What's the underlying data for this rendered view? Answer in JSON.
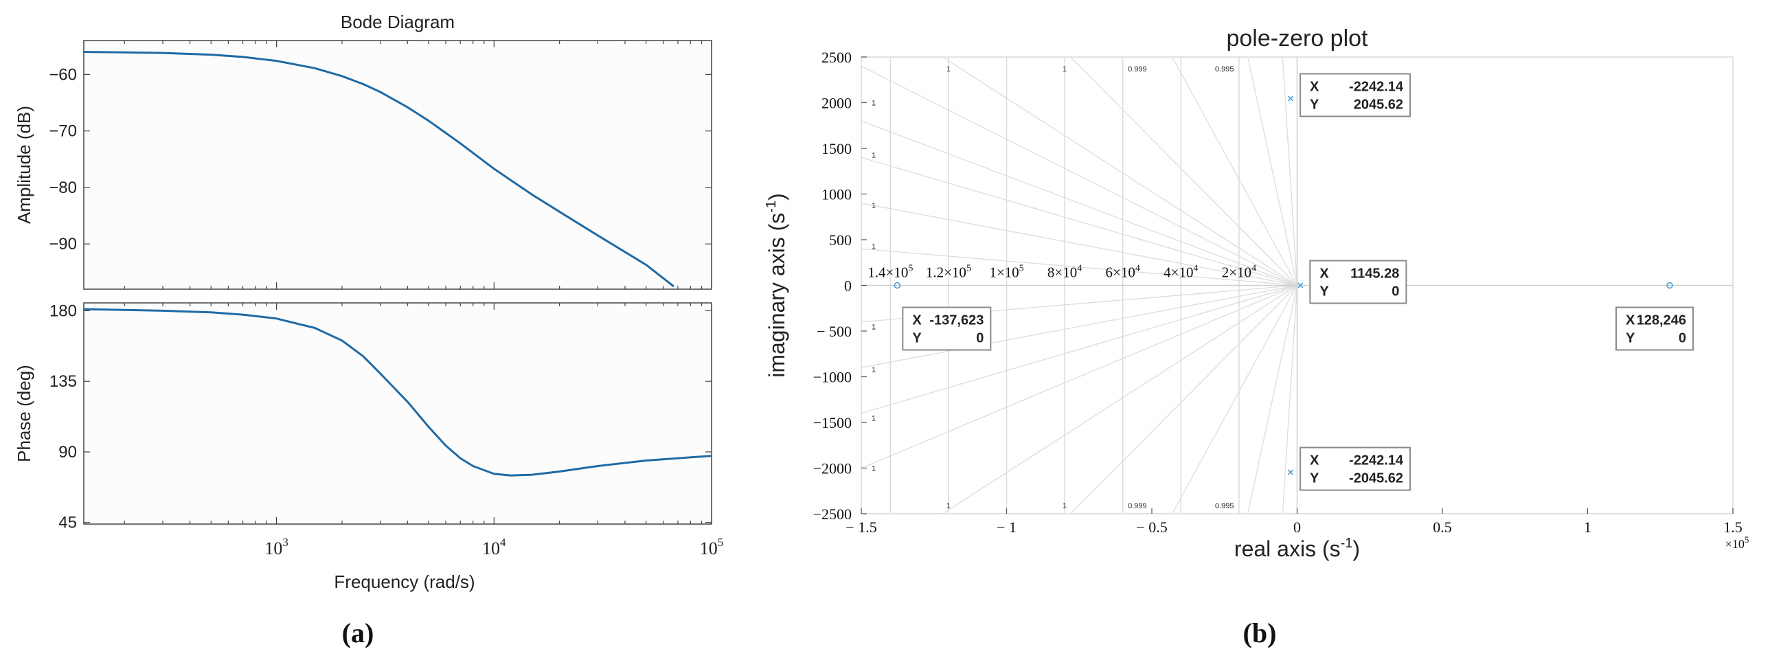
{
  "panel_labels": {
    "a": "(a)",
    "b": "(b)"
  },
  "chart_data": [
    {
      "type": "line",
      "title": "Bode Diagram",
      "xlabel": "Frequency (rad/s)",
      "ylabel": "Amplitude (dB)",
      "xscale": "log",
      "xlim": [
        130,
        100000
      ],
      "ylim": [
        -98,
        -54
      ],
      "xticks": [
        1000,
        10000,
        100000
      ],
      "xtick_labels": [
        {
          "base": "10",
          "exp": "3"
        },
        {
          "base": "10",
          "exp": "4"
        },
        {
          "base": "10",
          "exp": "5"
        }
      ],
      "yticks": [
        -90,
        -80,
        -70,
        -60
      ],
      "ytick_labels": [
        "−90",
        "−80",
        "−70",
        "−60"
      ],
      "grid": false,
      "series": [
        {
          "color": "#1f6aa5",
          "x": [
            130,
            200,
            300,
            500,
            700,
            1000,
            1500,
            2000,
            2500,
            3000,
            4000,
            5000,
            7000,
            10000,
            15000,
            20000,
            30000,
            50000,
            67000
          ],
          "y": [
            -56.0,
            -56.1,
            -56.2,
            -56.5,
            -56.9,
            -57.6,
            -58.9,
            -60.3,
            -61.7,
            -63.1,
            -65.8,
            -68.2,
            -72.2,
            -76.7,
            -81.3,
            -84.3,
            -88.5,
            -93.7,
            -97.5
          ]
        }
      ]
    },
    {
      "type": "line",
      "xlabel": "Frequency (rad/s)",
      "ylabel": "Phase (deg)",
      "xscale": "log",
      "xlim": [
        130,
        100000
      ],
      "ylim": [
        44,
        185
      ],
      "xticks": [
        1000,
        10000,
        100000
      ],
      "xtick_labels": [
        {
          "base": "10",
          "exp": "3"
        },
        {
          "base": "10",
          "exp": "4"
        },
        {
          "base": "10",
          "exp": "5"
        }
      ],
      "yticks": [
        45,
        90,
        135,
        180
      ],
      "ytick_labels": [
        "45",
        "90",
        "135",
        "180"
      ],
      "grid": false,
      "series": [
        {
          "color": "#1f6aa5",
          "x": [
            130,
            200,
            300,
            500,
            700,
            1000,
            1500,
            2000,
            2500,
            3000,
            4000,
            5000,
            6000,
            7000,
            8000,
            10000,
            12000,
            15000,
            20000,
            30000,
            50000,
            100000
          ],
          "y": [
            181,
            180.5,
            180,
            179,
            177.5,
            175,
            169,
            161,
            151,
            140,
            122,
            106,
            94,
            86,
            81,
            76,
            75,
            75.5,
            77.5,
            81,
            84.5,
            87.5
          ]
        }
      ]
    },
    {
      "type": "scatter",
      "title": "pole-zero plot",
      "xlabel": {
        "text": "real axis (s",
        "sup": "-1",
        "tail": ")"
      },
      "ylabel": {
        "text": "imaginary axis (s",
        "sup": "-1",
        "tail": ")"
      },
      "x_multiplier": {
        "base": "×10",
        "exp": "5"
      },
      "xlim": [
        -150000,
        150000
      ],
      "ylim": [
        -2500,
        2500
      ],
      "xticks": [
        -150000,
        -100000,
        -50000,
        0,
        50000,
        100000,
        150000
      ],
      "xtick_labels": [
        "− 1.5",
        "− 1",
        "− 0.5",
        "0",
        "0.5",
        "1",
        "1.5"
      ],
      "yticks": [
        -2500,
        -2000,
        -1500,
        -1000,
        -500,
        0,
        500,
        1000,
        1500,
        2000,
        2500
      ],
      "ytick_labels": [
        "−2500",
        "−2000",
        "−1500",
        "−1000",
        "− 500",
        "0",
        "500",
        "1000",
        "1500",
        "2000",
        "2500"
      ],
      "grid": "s-plane damping/frequency grid",
      "damping_labels": [
        "1",
        "1",
        "0.999",
        "0.995"
      ],
      "left_edge_labels": [
        "1",
        "1",
        "1",
        "1"
      ],
      "nat_freq_labels": [
        {
          "x": -140000,
          "m": "1.4",
          "e": "5"
        },
        {
          "x": -120000,
          "m": "1.2",
          "e": "5"
        },
        {
          "x": -100000,
          "m": "1",
          "e": "5"
        },
        {
          "x": -80000,
          "m": "8",
          "e": "4"
        },
        {
          "x": -60000,
          "m": "6",
          "e": "4"
        },
        {
          "x": -40000,
          "m": "4",
          "e": "4"
        },
        {
          "x": -20000,
          "m": "2",
          "e": "4"
        }
      ],
      "series": [
        {
          "marker": "x",
          "color": "#4a9fd8",
          "points": [
            {
              "x": -2242.14,
              "y": 2045.62
            },
            {
              "x": -2242.14,
              "y": -2045.62
            },
            {
              "x": 1145.28,
              "y": 0
            }
          ]
        },
        {
          "marker": "o",
          "color": "#4a9fd8",
          "points": [
            {
              "x": -137623,
              "y": 0
            },
            {
              "x": 128246,
              "y": 0
            }
          ]
        }
      ],
      "datatips": [
        {
          "x_label": "X",
          "y_label": "Y",
          "x_text": "-2242.14",
          "y_text": "2045.62"
        },
        {
          "x_label": "X",
          "y_label": "Y",
          "x_text": "-2242.14",
          "y_text": "-2045.62"
        },
        {
          "x_label": "X",
          "y_label": "Y",
          "x_text": "1145.28",
          "y_text": "0"
        },
        {
          "x_label": "X",
          "y_label": "Y",
          "x_text": "-137,623",
          "y_text": "0"
        },
        {
          "x_label": "X",
          "y_label": "Y",
          "x_text": "128,246",
          "y_text": "0"
        }
      ]
    }
  ]
}
